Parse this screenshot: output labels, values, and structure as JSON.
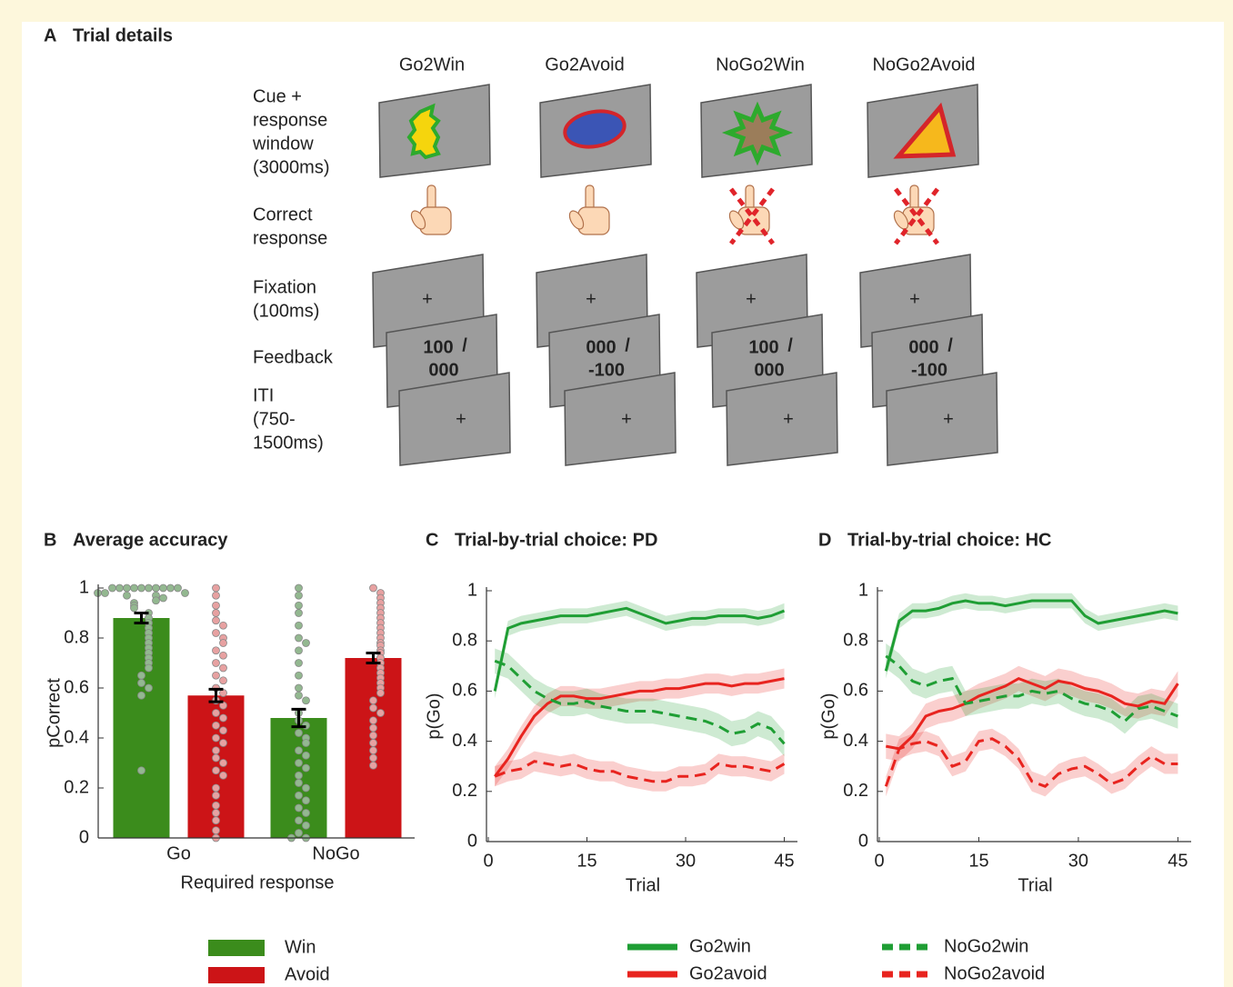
{
  "trial_details": {
    "panel": "A",
    "title": "Trial details",
    "conditions": [
      "Go2Win",
      "Go2Avoid",
      "NoGo2Win",
      "NoGo2Avoid"
    ],
    "stages": [
      {
        "label": [
          "Cue +",
          "response",
          "window"
        ],
        "duration": [
          "(3000ms)"
        ]
      },
      {
        "label": [
          "Correct",
          "response"
        ],
        "duration": []
      },
      {
        "label": [
          "Fixation"
        ],
        "duration": [
          "(100ms)"
        ]
      },
      {
        "label": [
          "Feedback"
        ],
        "duration": []
      },
      {
        "label": [
          "ITI"
        ],
        "duration": [
          "(750-",
          "1500ms)"
        ]
      }
    ],
    "fixation": "+",
    "separator": "/",
    "feedback": [
      [
        "100",
        "000"
      ],
      [
        "000",
        "-100"
      ],
      [
        "100",
        "000"
      ],
      [
        "000",
        "-100"
      ]
    ]
  },
  "chart_data": [
    {
      "type": "bar",
      "panel": "B",
      "title": "Average accuracy",
      "xlabel": "Required response",
      "ylabel": "pCorrect",
      "categories": [
        "Go",
        "NoGo"
      ],
      "ylim": [
        0,
        1
      ],
      "yticks": [
        0,
        0.2,
        0.4,
        0.6,
        0.8,
        1
      ],
      "series": [
        {
          "name": "Win",
          "color": "#3b8c1c",
          "dot_color": "#93b890",
          "values": [
            0.88,
            0.48
          ],
          "errors": [
            0.02,
            0.035
          ],
          "points": [
            [
              1,
              1,
              1,
              1,
              1,
              1,
              1,
              1,
              1,
              1,
              0.98,
              0.98,
              0.98,
              0.97,
              0.97,
              0.96,
              0.95,
              0.94,
              0.93,
              0.92,
              0.9,
              0.88,
              0.86,
              0.84,
              0.82,
              0.8,
              0.78,
              0.76,
              0.74,
              0.72,
              0.7,
              0.68,
              0.65,
              0.62,
              0.6,
              0.57,
              0.27
            ],
            [
              1,
              0.97,
              0.93,
              0.9,
              0.85,
              0.8,
              0.78,
              0.75,
              0.7,
              0.65,
              0.6,
              0.57,
              0.55,
              0.5,
              0.47,
              0.45,
              0.42,
              0.4,
              0.38,
              0.35,
              0.33,
              0.3,
              0.28,
              0.25,
              0.22,
              0.2,
              0.17,
              0.15,
              0.12,
              0.1,
              0.07,
              0.05,
              0.02,
              0,
              0
            ]
          ]
        },
        {
          "name": "Avoid",
          "color": "#cc1417",
          "dot_color": "#e7a1a1",
          "values": [
            0.57,
            0.72
          ],
          "errors": [
            0.025,
            0.02
          ],
          "points": [
            [
              1,
              0.97,
              0.93,
              0.9,
              0.87,
              0.85,
              0.82,
              0.8,
              0.78,
              0.75,
              0.73,
              0.7,
              0.68,
              0.65,
              0.63,
              0.6,
              0.58,
              0.55,
              0.53,
              0.5,
              0.48,
              0.45,
              0.43,
              0.4,
              0.38,
              0.35,
              0.32,
              0.3,
              0.27,
              0.25,
              0.2,
              0.17,
              0.13,
              0.1,
              0.07,
              0.03,
              0
            ],
            [
              1,
              0.98,
              0.96,
              0.94,
              0.92,
              0.9,
              0.88,
              0.86,
              0.84,
              0.82,
              0.8,
              0.78,
              0.77,
              0.75,
              0.74,
              0.72,
              0.7,
              0.68,
              0.66,
              0.64,
              0.62,
              0.6,
              0.58,
              0.55,
              0.52,
              0.5,
              0.47,
              0.44,
              0.41,
              0.38,
              0.35,
              0.32,
              0.29
            ]
          ]
        }
      ]
    },
    {
      "type": "line",
      "panel": "C",
      "title": "Trial-by-trial choice: PD",
      "xlabel": "Trial",
      "ylabel": "p(Go)",
      "xlim": [
        0,
        47
      ],
      "xticks": [
        0,
        15,
        30,
        45
      ],
      "ylim": [
        0,
        1
      ],
      "yticks": [
        0,
        0.2,
        0.4,
        0.6,
        0.8,
        1
      ],
      "x": [
        1,
        3,
        5,
        7,
        9,
        11,
        13,
        15,
        17,
        19,
        21,
        23,
        25,
        27,
        29,
        31,
        33,
        35,
        37,
        39,
        41,
        43,
        45
      ],
      "series": [
        {
          "name": "Go2win",
          "color": "#1f9e34",
          "dashed": false,
          "se": 0.03,
          "values": [
            0.6,
            0.85,
            0.87,
            0.88,
            0.89,
            0.9,
            0.9,
            0.9,
            0.91,
            0.92,
            0.93,
            0.91,
            0.89,
            0.87,
            0.88,
            0.89,
            0.89,
            0.9,
            0.9,
            0.9,
            0.89,
            0.9,
            0.92
          ]
        },
        {
          "name": "Go2avoid",
          "color": "#e8241f",
          "dashed": false,
          "se": 0.04,
          "values": [
            0.26,
            0.33,
            0.42,
            0.5,
            0.55,
            0.58,
            0.58,
            0.57,
            0.57,
            0.58,
            0.59,
            0.6,
            0.6,
            0.61,
            0.61,
            0.62,
            0.63,
            0.63,
            0.62,
            0.63,
            0.63,
            0.64,
            0.65
          ]
        },
        {
          "name": "NoGo2win",
          "color": "#1f9e34",
          "dashed": true,
          "se": 0.05,
          "values": [
            0.72,
            0.7,
            0.65,
            0.6,
            0.57,
            0.55,
            0.55,
            0.56,
            0.54,
            0.53,
            0.52,
            0.52,
            0.52,
            0.51,
            0.5,
            0.49,
            0.48,
            0.46,
            0.43,
            0.44,
            0.47,
            0.45,
            0.39
          ]
        },
        {
          "name": "NoGo2avoid",
          "color": "#e8241f",
          "dashed": true,
          "se": 0.04,
          "values": [
            0.26,
            0.28,
            0.29,
            0.32,
            0.31,
            0.3,
            0.31,
            0.29,
            0.28,
            0.28,
            0.26,
            0.25,
            0.24,
            0.24,
            0.26,
            0.26,
            0.27,
            0.31,
            0.3,
            0.3,
            0.29,
            0.28,
            0.31
          ]
        }
      ]
    },
    {
      "type": "line",
      "panel": "D",
      "title": "Trial-by-trial choice: HC",
      "xlabel": "Trial",
      "ylabel": "p(Go)",
      "xlim": [
        0,
        47
      ],
      "xticks": [
        0,
        15,
        30,
        45
      ],
      "ylim": [
        0,
        1
      ],
      "yticks": [
        0,
        0.2,
        0.4,
        0.6,
        0.8,
        1
      ],
      "x": [
        1,
        3,
        5,
        7,
        9,
        11,
        13,
        15,
        17,
        19,
        21,
        23,
        25,
        27,
        29,
        31,
        33,
        35,
        37,
        39,
        41,
        43,
        45
      ],
      "series": [
        {
          "color": "#1f9e34",
          "dashed": false,
          "se": 0.03,
          "values": [
            0.68,
            0.88,
            0.92,
            0.92,
            0.93,
            0.95,
            0.96,
            0.95,
            0.95,
            0.94,
            0.95,
            0.96,
            0.96,
            0.96,
            0.96,
            0.9,
            0.87,
            0.88,
            0.89,
            0.9,
            0.91,
            0.92,
            0.91
          ]
        },
        {
          "color": "#e8241f",
          "dashed": false,
          "se": 0.05,
          "values": [
            0.38,
            0.37,
            0.42,
            0.5,
            0.52,
            0.53,
            0.55,
            0.58,
            0.6,
            0.62,
            0.65,
            0.63,
            0.61,
            0.64,
            0.63,
            0.61,
            0.6,
            0.58,
            0.55,
            0.54,
            0.56,
            0.55,
            0.63
          ]
        },
        {
          "color": "#1f9e34",
          "dashed": true,
          "se": 0.05,
          "values": [
            0.74,
            0.7,
            0.64,
            0.62,
            0.64,
            0.65,
            0.55,
            0.56,
            0.57,
            0.58,
            0.58,
            0.6,
            0.59,
            0.6,
            0.57,
            0.55,
            0.54,
            0.52,
            0.48,
            0.53,
            0.54,
            0.52,
            0.5
          ]
        },
        {
          "color": "#e8241f",
          "dashed": true,
          "se": 0.04,
          "values": [
            0.22,
            0.37,
            0.39,
            0.4,
            0.38,
            0.3,
            0.32,
            0.4,
            0.41,
            0.38,
            0.33,
            0.24,
            0.22,
            0.27,
            0.29,
            0.3,
            0.27,
            0.23,
            0.25,
            0.3,
            0.34,
            0.31,
            0.31
          ]
        }
      ]
    }
  ]
}
